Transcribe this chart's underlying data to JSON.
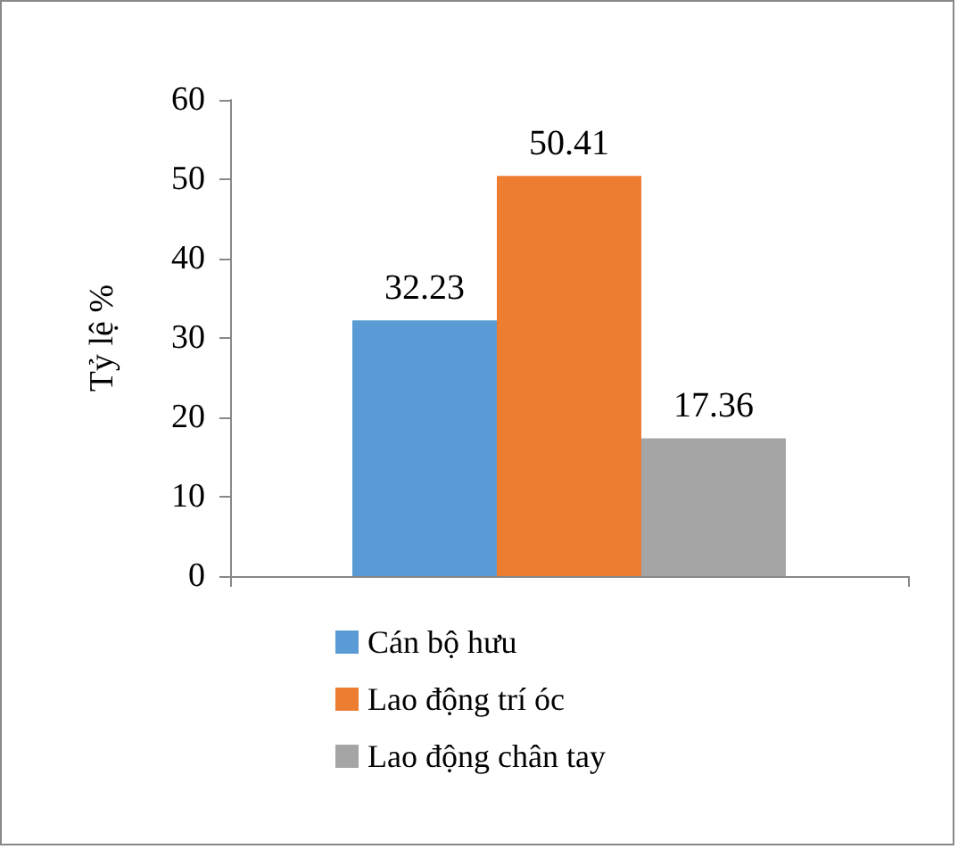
{
  "chart_data": {
    "type": "bar",
    "ylabel": "Tỷ lệ %",
    "categories": [
      null
    ],
    "series": [
      {
        "name": "Cán bộ hưu",
        "color": "#5b9bd5",
        "values": [
          32.23
        ]
      },
      {
        "name": "Lao động trí óc",
        "color": "#ed7d31",
        "values": [
          50.41
        ]
      },
      {
        "name": "Lao động chân tay",
        "color": "#a5a5a5",
        "values": [
          17.36
        ]
      }
    ],
    "ylim": [
      0,
      60
    ],
    "yticks": [
      0,
      10,
      20,
      30,
      40,
      50,
      60
    ],
    "grid": false,
    "legend": "bottom",
    "data_labels": true
  }
}
